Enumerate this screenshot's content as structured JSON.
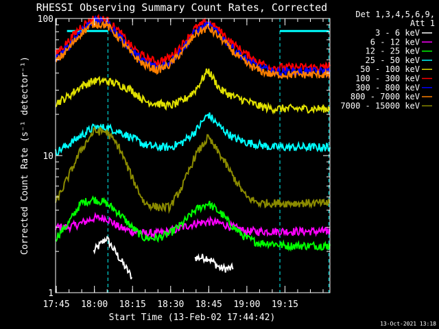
{
  "chart_data": {
    "type": "line",
    "title": "RHESSI Observing Summary Count Rates, Corrected",
    "xlabel": "Start Time (13-Feb-02 17:44:42)",
    "ylabel": "Corrected Count Rate (s⁻¹ detector⁻¹)",
    "yscale": "log",
    "xlim_min": [
      0,
      108
    ],
    "ylim": [
      1,
      100
    ],
    "x_ticks": [
      {
        "t": 0.3,
        "label": "17:45"
      },
      {
        "t": 15.3,
        "label": "18:00"
      },
      {
        "t": 30.3,
        "label": "18:15"
      },
      {
        "t": 45.3,
        "label": "18:30"
      },
      {
        "t": 60.3,
        "label": "18:45"
      },
      {
        "t": 75.3,
        "label": "19:00"
      },
      {
        "t": 90.3,
        "label": "19:15"
      }
    ],
    "y_ticks": [
      {
        "v": 1,
        "label": "1"
      },
      {
        "v": 10,
        "label": "10"
      },
      {
        "v": 100,
        "label": "100"
      }
    ],
    "legend_header": [
      "Det 1,3,4,5,6,9,",
      "Att 1"
    ],
    "legend_position": "top-right",
    "vertical_markers_min": [
      20.6,
      88.3,
      107.6
    ],
    "attenuator_bars": [
      {
        "start_min": 4.5,
        "end_min": 20.6
      },
      {
        "start_min": 88.3,
        "end_min": 107.6
      }
    ],
    "x": [
      0,
      5,
      10,
      15,
      20,
      25,
      30,
      35,
      40,
      45,
      50,
      55,
      60,
      65,
      70,
      75,
      80,
      85,
      90,
      95,
      100,
      105,
      108
    ],
    "series": [
      {
        "name": "3 - 6 keV",
        "color": "#ffffff",
        "values": [
          null,
          null,
          null,
          2.0,
          2.5,
          1.8,
          1.3,
          null,
          null,
          null,
          null,
          1.8,
          1.8,
          1.5,
          1.5,
          null,
          null,
          null,
          null,
          null,
          null,
          null,
          null
        ]
      },
      {
        "name": "6 - 12 keV",
        "color": "#ff00ff",
        "values": [
          3.0,
          3.0,
          3.2,
          3.5,
          3.5,
          3.0,
          2.8,
          2.7,
          2.7,
          2.8,
          3.0,
          3.2,
          3.3,
          3.2,
          3.0,
          2.8,
          2.8,
          2.8,
          2.8,
          2.8,
          2.8,
          2.8,
          2.8
        ]
      },
      {
        "name": "12 - 25 keV",
        "color": "#00ff00",
        "values": [
          2.5,
          3.2,
          4.5,
          4.8,
          4.5,
          3.8,
          3.0,
          2.5,
          2.5,
          2.7,
          3.2,
          4.0,
          4.5,
          3.8,
          3.0,
          2.5,
          2.3,
          2.3,
          2.2,
          2.2,
          2.2,
          2.2,
          2.2
        ]
      },
      {
        "name": "25 - 50 keV",
        "color": "#00ffff",
        "values": [
          10.5,
          12.0,
          14.0,
          16.0,
          16.0,
          15.0,
          13.5,
          12.0,
          11.5,
          11.5,
          12.5,
          15.0,
          20.0,
          16.0,
          13.5,
          12.5,
          12.0,
          11.5,
          11.5,
          11.5,
          11.5,
          11.5,
          11.5
        ]
      },
      {
        "name": "50 - 100 keV",
        "color": "#e0e000",
        "values": [
          24.0,
          27.0,
          32.0,
          35.0,
          35.0,
          33.0,
          30.0,
          25.0,
          24.0,
          23.0,
          25.0,
          30.0,
          42.0,
          30.0,
          27.0,
          25.0,
          23.0,
          22.0,
          22.0,
          22.0,
          22.0,
          22.0,
          22.0
        ]
      },
      {
        "name": "100 - 300 keV",
        "color": "#ff0000",
        "values": [
          55.0,
          68.0,
          88.0,
          100.0,
          98.0,
          80.0,
          62.0,
          52.0,
          48.0,
          52.0,
          65.0,
          85.0,
          95.0,
          80.0,
          65.0,
          55.0,
          48.0,
          44.0,
          44.0,
          44.0,
          44.0,
          44.0,
          45.0
        ]
      },
      {
        "name": "300 - 800 keV",
        "color": "#0000ff",
        "values": [
          50.0,
          62.0,
          82.0,
          96.0,
          94.0,
          75.0,
          58.0,
          48.0,
          44.0,
          48.0,
          60.0,
          80.0,
          90.0,
          75.0,
          60.0,
          50.0,
          44.0,
          41.0,
          41.0,
          41.0,
          41.0,
          41.0,
          41.0
        ]
      },
      {
        "name": "800 - 7000 keV",
        "color": "#ff8000",
        "values": [
          48.0,
          60.0,
          78.0,
          92.0,
          90.0,
          72.0,
          55.0,
          46.0,
          42.0,
          46.0,
          58.0,
          77.0,
          86.0,
          72.0,
          57.0,
          47.0,
          42.0,
          39.0,
          39.0,
          39.0,
          39.0,
          39.0,
          39.0
        ]
      },
      {
        "name": "7000 - 15000 keV",
        "color": "#8b8b00",
        "values": [
          4.5,
          7.0,
          11.0,
          15.0,
          15.0,
          11.5,
          7.0,
          4.5,
          4.2,
          4.2,
          6.0,
          10.0,
          13.5,
          10.0,
          7.0,
          5.0,
          4.5,
          4.5,
          4.5,
          4.5,
          4.5,
          4.5,
          4.5
        ]
      }
    ],
    "footer_timestamp": "13-Oct-2021 13:18"
  }
}
